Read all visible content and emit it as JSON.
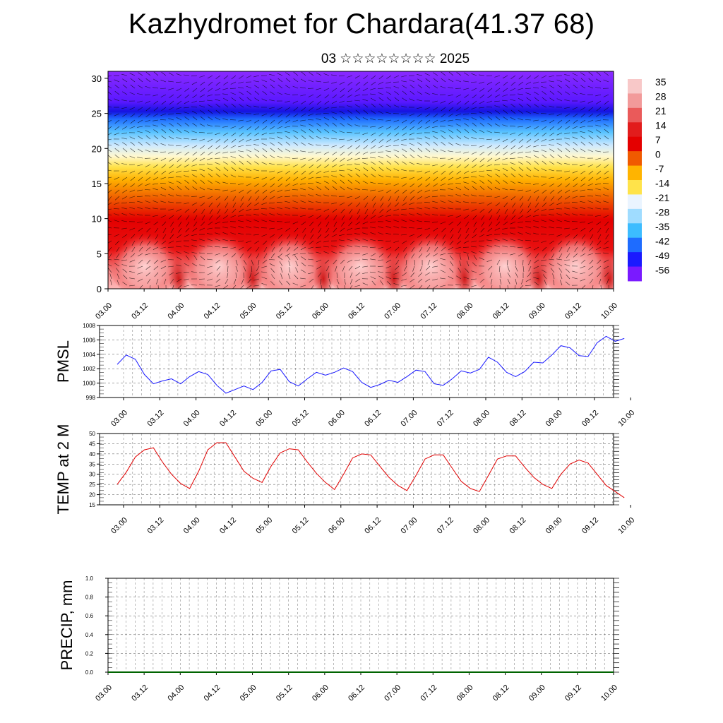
{
  "title": "Kazhydromet for Chardara(41.37 68)",
  "subtitle": "03 ☆☆☆☆☆☆☆☆ 2025",
  "colors": {
    "pmsl_line": "#1a1aff",
    "temp_line": "#e00000",
    "precip_line": "#006400",
    "grid": "#000000"
  },
  "colorbar": {
    "labels": [
      "35",
      "28",
      "21",
      "14",
      "7",
      "0",
      "-7",
      "-14",
      "-21",
      "-28",
      "-35",
      "-42",
      "-49",
      "-56"
    ],
    "colors": [
      "#f8c8c8",
      "#f29a9a",
      "#ea5a5a",
      "#e21c1c",
      "#e40000",
      "#f05a00",
      "#ffb400",
      "#ffe34a",
      "#eaf4ff",
      "#9fdcff",
      "#3cbcff",
      "#1e6cff",
      "#1a1aff",
      "#7a1aff"
    ]
  },
  "chart_data": [
    {
      "type": "heatmap",
      "title": "Kazhydromet for Chardara(41.37 68)",
      "subtitle": "03 ☆☆☆☆☆☆☆☆ 2025",
      "x_ticks": [
        "03.00",
        "03.12",
        "04.00",
        "04.12",
        "05.00",
        "05.12",
        "06.00",
        "06.12",
        "07.00",
        "07.12",
        "08.00",
        "08.12",
        "09.00",
        "09.12",
        "10.00"
      ],
      "y_ticks": [
        "0",
        "5",
        "10",
        "15",
        "20",
        "25",
        "30"
      ],
      "ylim": [
        0,
        31
      ],
      "colorbar_labels": [
        "35",
        "28",
        "21",
        "14",
        "7",
        "0",
        "-7",
        "-14",
        "-21",
        "-28",
        "-35",
        "-42",
        "-49",
        "-56"
      ],
      "wind_barbs": true
    },
    {
      "type": "line",
      "ylabel": "PMSL",
      "x_ticks": [
        "03.00",
        "03.12",
        "04.00",
        "04.12",
        "05.00",
        "05.12",
        "06.00",
        "06.12",
        "07.00",
        "07.12",
        "08.00",
        "08.12",
        "09.00",
        "09.12",
        "10.00"
      ],
      "y_ticks": [
        "998",
        "1000",
        "1002",
        "1004",
        "1006",
        "1008"
      ],
      "ylim": [
        998,
        1008
      ],
      "values": [
        1002.6,
        1003.9,
        1003.3,
        1001.2,
        999.9,
        1000.3,
        1000.6,
        999.9,
        1000.9,
        1001.6,
        1001.2,
        999.7,
        998.6,
        999.1,
        999.6,
        999.1,
        1000.1,
        1001.7,
        1001.9,
        1000.2,
        999.6,
        1000.6,
        1001.5,
        1001.1,
        1001.5,
        1002.1,
        1001.6,
        1000.1,
        999.4,
        999.8,
        1000.4,
        1000.1,
        1000.9,
        1001.8,
        1001.6,
        999.9,
        999.7,
        1000.6,
        1001.7,
        1001.4,
        1001.9,
        1003.6,
        1002.9,
        1001.5,
        1000.9,
        1001.6,
        1002.9,
        1002.8,
        1003.9,
        1005.2,
        1004.9,
        1003.8,
        1003.7,
        1005.6,
        1006.5,
        1005.8,
        1006.2
      ]
    },
    {
      "type": "line",
      "ylabel": "TEMP at 2 M",
      "x_ticks": [
        "03.00",
        "03.12",
        "04.00",
        "04.12",
        "05.00",
        "05.12",
        "06.00",
        "06.12",
        "07.00",
        "07.12",
        "08.00",
        "08.12",
        "09.00",
        "09.12",
        "10.00"
      ],
      "y_ticks": [
        "15",
        "20",
        "25",
        "30",
        "35",
        "40",
        "45",
        "50"
      ],
      "ylim": [
        15,
        50
      ],
      "values": [
        25,
        31,
        38.5,
        42,
        43,
        36,
        30,
        25.5,
        23,
        31.5,
        42,
        45.5,
        45.5,
        38.5,
        31.5,
        28,
        26,
        34,
        40.5,
        42.5,
        42,
        36,
        30.5,
        26,
        22.5,
        30,
        38,
        40,
        39.5,
        34,
        28.5,
        24.5,
        22,
        29.5,
        37.5,
        39.5,
        39.5,
        33,
        26.5,
        23,
        21.5,
        29.5,
        37.5,
        39,
        39,
        33.5,
        28.5,
        25,
        23,
        30,
        35,
        37,
        35.5,
        30,
        24.5,
        21.5,
        18.5
      ]
    },
    {
      "type": "line",
      "ylabel": "PRECIP, mm",
      "x_ticks": [
        "03.00",
        "03.12",
        "04.00",
        "04.12",
        "05.00",
        "05.12",
        "06.00",
        "06.12",
        "07.00",
        "07.12",
        "08.00",
        "08.12",
        "09.00",
        "09.12",
        "10.00"
      ],
      "y_ticks": [
        "0.0",
        "0.2",
        "0.4",
        "0.6",
        "0.8",
        "1.0"
      ],
      "ylim": [
        0,
        1
      ],
      "values": [
        0,
        0
      ]
    }
  ]
}
